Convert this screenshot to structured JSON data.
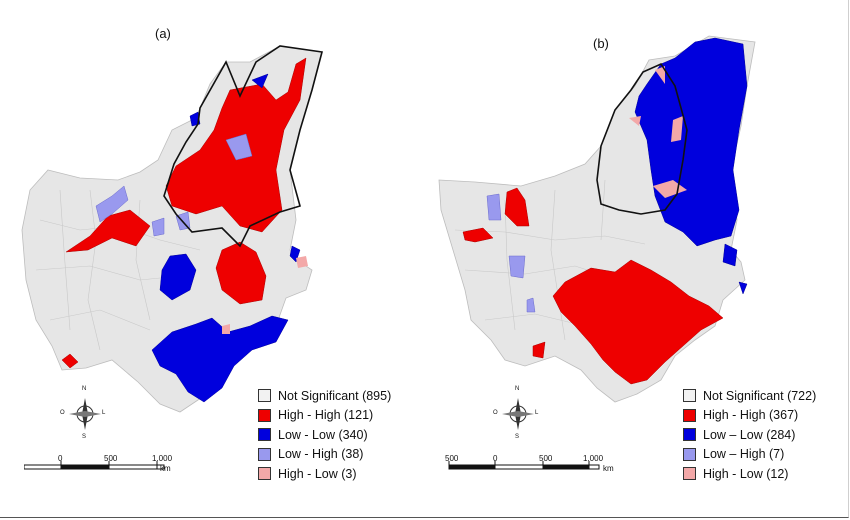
{
  "panels": [
    {
      "label": "(a)",
      "legend": [
        {
          "label": "Not Significant (895)",
          "color": "#f2f2f2"
        },
        {
          "label": "High - High (121)",
          "color": "#ee0000"
        },
        {
          "label": "Low - Low (340)",
          "color": "#0000dd"
        },
        {
          "label": "Low - High (38)",
          "color": "#9999ee"
        },
        {
          "label": " High - Low (3)",
          "color": "#f3a8a8"
        }
      ],
      "scale": {
        "ticks": [
          "0",
          "500",
          "1.000"
        ],
        "unit": "km"
      }
    },
    {
      "label": "(b)",
      "legend": [
        {
          "label": "Not Significant (722)",
          "color": "#f2f2f2"
        },
        {
          "label": "High - High (367)",
          "color": "#ee0000"
        },
        {
          "label": "Low – Low  (284)",
          "color": "#0000dd"
        },
        {
          "label": "Low – High (7)",
          "color": "#9999ee"
        },
        {
          "label": " High - Low (12)",
          "color": "#f3a8a8"
        }
      ],
      "scale": {
        "ticks": [
          "500",
          "0",
          "500",
          "1.000"
        ],
        "unit": "km"
      }
    }
  ],
  "compass": {
    "n": "N",
    "s": "S",
    "e": "L",
    "w": "O"
  },
  "colors": {
    "not_significant": "#e8e8e8",
    "high_high": "#ee0000",
    "low_low": "#0000dd",
    "low_high": "#9999ee",
    "high_low": "#f3a8a8",
    "boundary": "#111111"
  }
}
